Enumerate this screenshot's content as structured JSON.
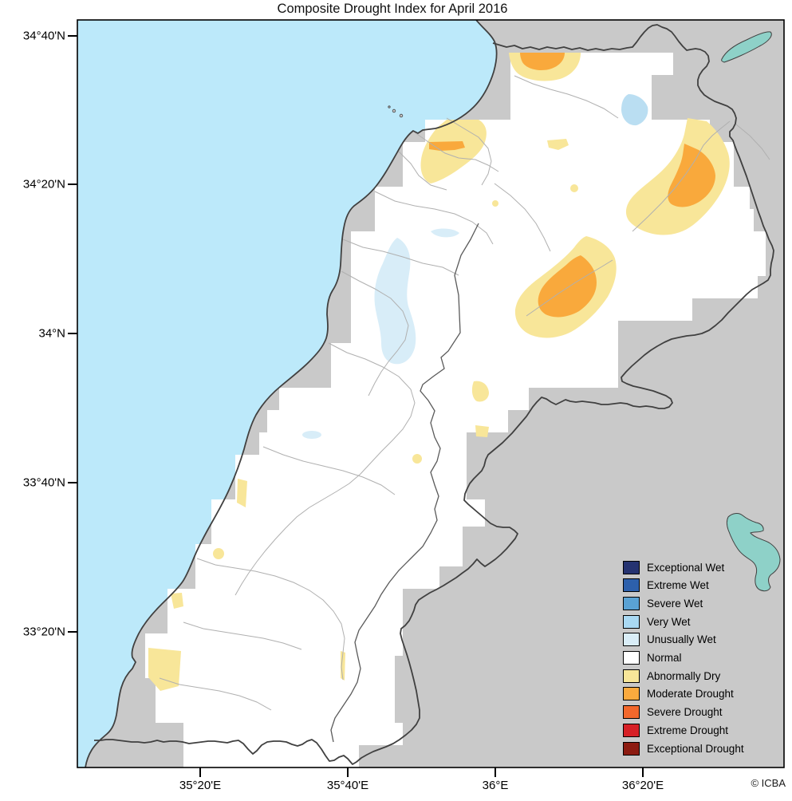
{
  "title": "Composite Drought Index for April 2016",
  "attribution": "© ICBA",
  "axes": {
    "y_tick_labels": [
      "34°40'N",
      "34°20'N",
      "34°N",
      "33°40'N",
      "33°20'N"
    ],
    "x_tick_labels": [
      "35°20'E",
      "35°40'E",
      "36°E",
      "36°20'E"
    ]
  },
  "legend": {
    "items": [
      {
        "label": "Exceptional Wet",
        "color": "#253371"
      },
      {
        "label": "Extreme Wet",
        "color": "#2d60ac"
      },
      {
        "label": "Severe Wet",
        "color": "#5aa2d4"
      },
      {
        "label": "Very Wet",
        "color": "#a9d9f3"
      },
      {
        "label": "Unusually Wet",
        "color": "#d9edf7"
      },
      {
        "label": "Normal",
        "color": "#ffffff"
      },
      {
        "label": "Abnormally Dry",
        "color": "#f8e699"
      },
      {
        "label": "Moderate Drought",
        "color": "#fbaa3e"
      },
      {
        "label": "Severe Drought",
        "color": "#f2682c"
      },
      {
        "label": "Extreme Drought",
        "color": "#d62026"
      },
      {
        "label": "Exceptional Drought",
        "color": "#8c1b11"
      }
    ]
  },
  "map_colors": {
    "sea": "#bce9fa",
    "land_outside": "#c9c9c9",
    "data_normal": "#ffffff",
    "lake": "#8ed1c8",
    "border_dark": "#404040",
    "admin_line": "#b0b0b0",
    "admin_line_dark": "#5a5a5a",
    "patch_dry": "#f8e699",
    "patch_moderate": "#f9a93c",
    "patch_wet_band": "#d8edf8",
    "patch_wet": "#badef2"
  }
}
